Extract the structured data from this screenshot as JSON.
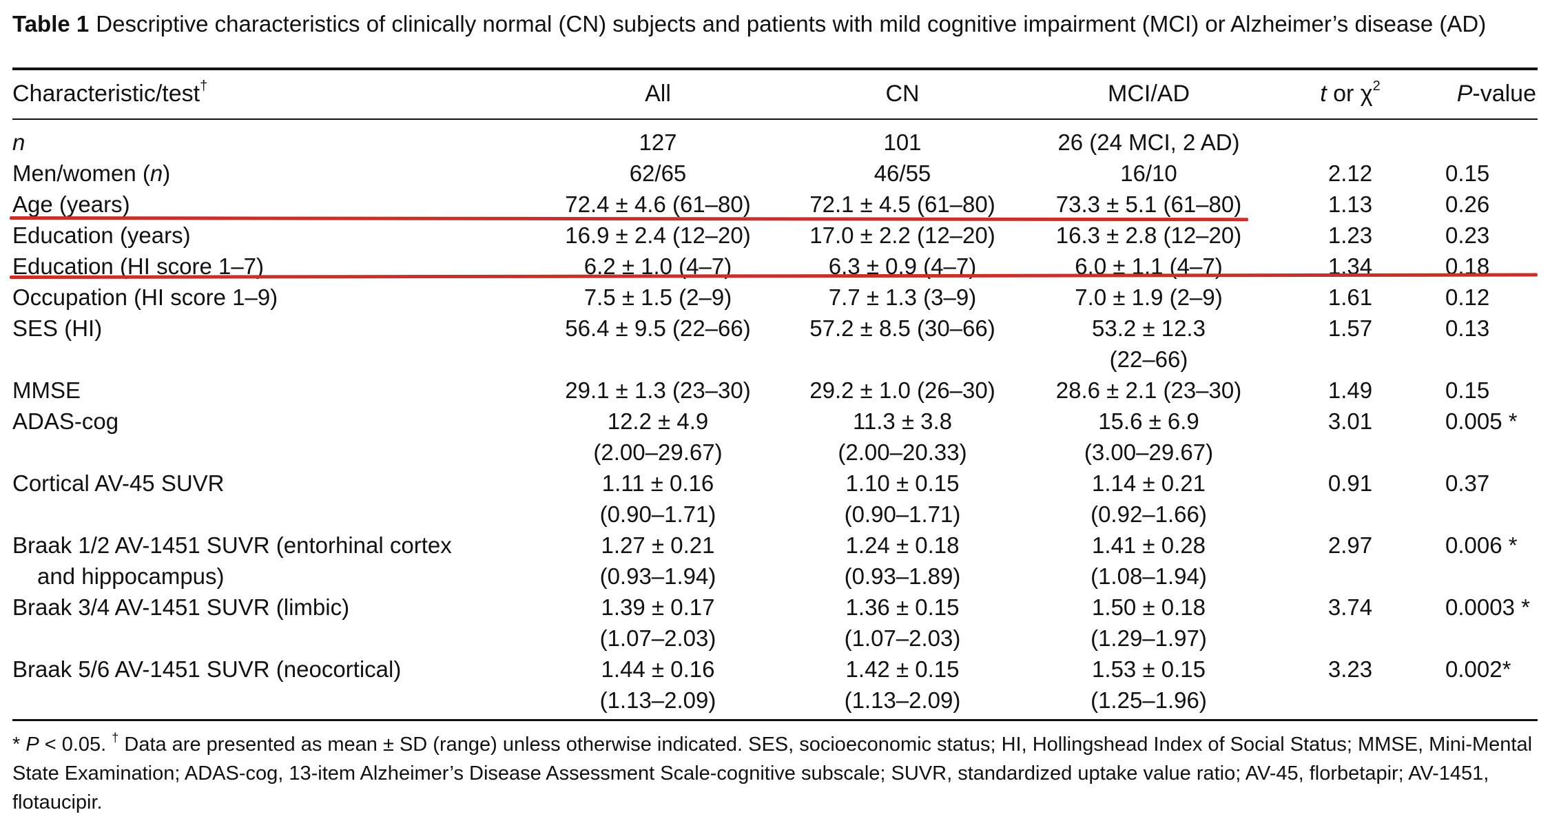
{
  "caption": {
    "label": "Table 1",
    "text": "Descriptive characteristics of clinically normal (CN) subjects and patients with mild cognitive impairment (MCI) or Alzheimer’s disease (AD)"
  },
  "header": {
    "characteristic": "Characteristic/test",
    "characteristic_mark": "†",
    "all": "All",
    "cn": "CN",
    "mciad": "MCI/AD",
    "stat_t": "t",
    "stat_or": " or χ",
    "stat_sup": "2",
    "p_italic": "P",
    "p_rest": "-value"
  },
  "rows": [
    {
      "label": "n",
      "all": [
        "127"
      ],
      "cn": [
        "101"
      ],
      "mciad": [
        "26 (24 MCI, 2 AD)"
      ],
      "stat": "",
      "p": ""
    },
    {
      "label": "Men/women (",
      "label_it": "n",
      "label_end": ")",
      "all": [
        "62/65"
      ],
      "cn": [
        "46/55"
      ],
      "mciad": [
        "16/10"
      ],
      "stat": "2.12",
      "p": "0.15"
    },
    {
      "label": "Age (years)",
      "all": [
        "72.4 ± 4.6 (61–80)"
      ],
      "cn": [
        "72.1 ± 4.5 (61–80)"
      ],
      "mciad": [
        "73.3 ± 5.1 (61–80)"
      ],
      "stat": "1.13",
      "p": "0.26"
    },
    {
      "label": "Education (years)",
      "all": [
        "16.9 ± 2.4 (12–20)"
      ],
      "cn": [
        "17.0 ± 2.2 (12–20)"
      ],
      "mciad": [
        "16.3 ± 2.8 (12–20)"
      ],
      "stat": "1.23",
      "p": "0.23"
    },
    {
      "label": "Education (HI score 1–7)",
      "all": [
        "6.2 ± 1.0 (4–7)"
      ],
      "cn": [
        "6.3 ± 0.9 (4–7)"
      ],
      "mciad": [
        "6.0 ± 1.1 (4–7)"
      ],
      "stat": "1.34",
      "p": "0.18"
    },
    {
      "label": "Occupation (HI score 1–9)",
      "all": [
        "7.5 ± 1.5 (2–9)"
      ],
      "cn": [
        "7.7 ± 1.3 (3–9)"
      ],
      "mciad": [
        "7.0 ± 1.9 (2–9)"
      ],
      "stat": "1.61",
      "p": "0.12"
    },
    {
      "label": "SES (HI)",
      "all": [
        "56.4 ± 9.5 (22–66)"
      ],
      "cn": [
        "57.2 ± 8.5 (30–66)"
      ],
      "mciad": [
        "53.2 ± 12.3",
        "(22–66)"
      ],
      "stat": "1.57",
      "p": "0.13"
    },
    {
      "label": "MMSE",
      "all": [
        "29.1 ± 1.3 (23–30)"
      ],
      "cn": [
        "29.2 ± 1.0 (26–30)"
      ],
      "mciad": [
        "28.6 ± 2.1 (23–30)"
      ],
      "stat": "1.49",
      "p": "0.15"
    },
    {
      "label": "ADAS-cog",
      "all": [
        "12.2 ± 4.9",
        "(2.00–29.67)"
      ],
      "cn": [
        "11.3 ± 3.8",
        "(2.00–20.33)"
      ],
      "mciad": [
        "15.6 ± 6.9",
        "(3.00–29.67)"
      ],
      "stat": "3.01",
      "p": "0.005 *"
    },
    {
      "label": "Cortical AV-45 SUVR",
      "all": [
        "1.11 ± 0.16",
        "(0.90–1.71)"
      ],
      "cn": [
        "1.10 ± 0.15",
        "(0.90–1.71)"
      ],
      "mciad": [
        "1.14 ± 0.21",
        "(0.92–1.66)"
      ],
      "stat": "0.91",
      "p": "0.37"
    },
    {
      "label": "Braak 1/2 AV-1451 SUVR (entorhinal cortex",
      "label2": "and hippocampus)",
      "all": [
        "1.27 ± 0.21",
        "(0.93–1.94)"
      ],
      "cn": [
        "1.24 ± 0.18",
        "(0.93–1.89)"
      ],
      "mciad": [
        "1.41 ± 0.28",
        "(1.08–1.94)"
      ],
      "stat": "2.97",
      "p": "0.006 *"
    },
    {
      "label": "Braak 3/4 AV-1451 SUVR (limbic)",
      "all": [
        "1.39 ± 0.17",
        "(1.07–2.03)"
      ],
      "cn": [
        "1.36 ± 0.15",
        "(1.07–2.03)"
      ],
      "mciad": [
        "1.50 ± 0.18",
        "(1.29–1.97)"
      ],
      "stat": "3.74",
      "p": "0.0003 *"
    },
    {
      "label": "Braak 5/6 AV-1451 SUVR (neocortical)",
      "all": [
        "1.44 ± 0.16",
        "(1.13–2.09)"
      ],
      "cn": [
        "1.42 ± 0.15",
        "(1.13–2.09)"
      ],
      "mciad": [
        "1.53 ± 0.15",
        "(1.25–1.96)"
      ],
      "stat": "3.23",
      "p": "0.002*"
    }
  ],
  "footnote": {
    "star": "* ",
    "p_italic": "P",
    "p_rest": " < 0.05. ",
    "dagger": "†",
    "text": " Data are presented as mean ± SD (range) unless otherwise indicated. SES, socioeconomic status; HI, Hollingshead Index of Social Status; MMSE, Mini-Mental State Examination; ADAS-cog, 13-item Alzheimer’s Disease Assessment Scale-cognitive subscale; SUVR, standardized uptake value ratio; AV-45, florbetapir; AV-1451, flotaucipir."
  },
  "annotation_color": "#c8312a"
}
